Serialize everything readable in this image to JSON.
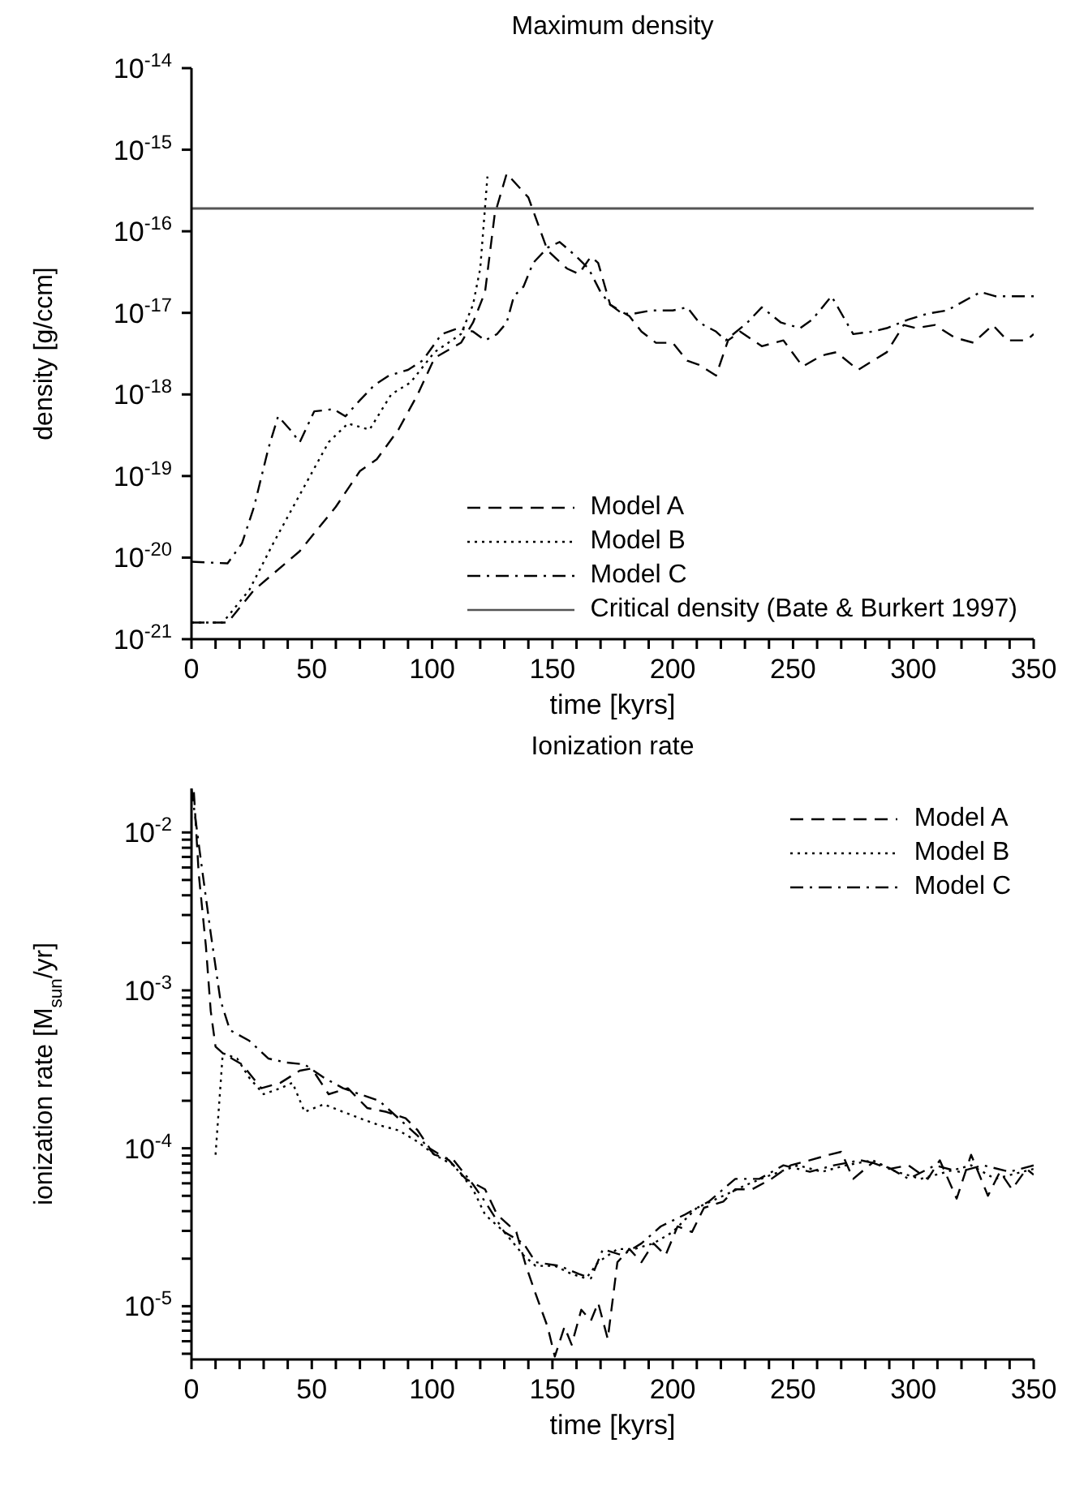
{
  "chart_data": [
    {
      "type": "line",
      "title": "Maximum density",
      "xlabel": "time [kyrs]",
      "ylabel": "density [g/ccm]",
      "log": "y",
      "legend": "bottom right",
      "xlim": [
        0,
        350
      ],
      "xticks": [
        0,
        {
          "value": 10,
          "label": null
        },
        {
          "value": 20,
          "label": null
        },
        {
          "value": 30,
          "label": null
        },
        {
          "value": 40,
          "label": null
        },
        50,
        {
          "value": 60,
          "label": null
        },
        {
          "value": 70,
          "label": null
        },
        {
          "value": 80,
          "label": null
        },
        {
          "value": 90,
          "label": null
        },
        100,
        {
          "value": 110,
          "label": null
        },
        {
          "value": 120,
          "label": null
        },
        {
          "value": 130,
          "label": null
        },
        {
          "value": 140,
          "label": null
        },
        150,
        {
          "value": 160,
          "label": null
        },
        {
          "value": 170,
          "label": null
        },
        {
          "value": 180,
          "label": null
        },
        {
          "value": 190,
          "label": null
        },
        200,
        {
          "value": 210,
          "label": null
        },
        {
          "value": 220,
          "label": null
        },
        {
          "value": 230,
          "label": null
        },
        {
          "value": 240,
          "label": null
        },
        250,
        {
          "value": 260,
          "label": null
        },
        {
          "value": 270,
          "label": null
        },
        {
          "value": 280,
          "label": null
        },
        {
          "value": 290,
          "label": null
        },
        300,
        {
          "value": 310,
          "label": null
        },
        {
          "value": 320,
          "label": null
        },
        {
          "value": 330,
          "label": null
        },
        {
          "value": 340,
          "label": null
        },
        350
      ],
      "ylim": [
        1e-21,
        1e-14
      ],
      "yticks": [
        {
          "value": 1e-21,
          "label": "10$^{-21}$"
        },
        {
          "value": 1e-20,
          "label": "10$^{-20}$"
        },
        {
          "value": 1e-19,
          "label": "10$^{-19}$"
        },
        {
          "value": 1e-18,
          "label": "10$^{-18}$"
        },
        {
          "value": 1e-17,
          "label": "10$^{-17}$"
        },
        {
          "value": 1e-16,
          "label": "10$^{-16}$"
        },
        {
          "value": 1e-15,
          "label": "10$^{-15}$"
        },
        {
          "value": 1e-14,
          "label": "10$^{-14}$"
        }
      ],
      "ref_lines": [
        {
          "axis": "y",
          "value": 1.9e-16,
          "label": "Critical density (Bate & Burkert 1997)",
          "color": "#555555",
          "line_style": "solid"
        }
      ],
      "series": [
        {
          "name": "Model A",
          "color": "#000000",
          "line_style": "dashed",
          "x": [
            0,
            15,
            26,
            45,
            60,
            70,
            77,
            86,
            94,
            101,
            112,
            117,
            122,
            126,
            131,
            140,
            148,
            156,
            161,
            166,
            169,
            174,
            182,
            187,
            193,
            200,
            206,
            211,
            218,
            223,
            228,
            237,
            246,
            254,
            262,
            268,
            277,
            289,
            296,
            301,
            309,
            317,
            325,
            333,
            339,
            347,
            350
          ],
          "values": [
            1.6e-21,
            1.6e-21,
            4e-21,
            1.2e-20,
            4.2e-20,
            1.15e-19,
            1.6e-19,
            3.7e-19,
            1e-18,
            2.8e-18,
            4.3e-18,
            7.6e-18,
            1.8e-17,
            1.6e-16,
            5.1e-16,
            2.6e-16,
            5.8e-17,
            3.5e-17,
            3e-17,
            4.9e-17,
            4.1e-17,
            1.26e-17,
            9.1e-18,
            5.9e-18,
            4.3e-18,
            4.3e-18,
            2.6e-18,
            2.3e-18,
            1.7e-18,
            4.6e-18,
            5.9e-18,
            3.9e-18,
            4.6e-18,
            2.2e-18,
            3e-18,
            3.3e-18,
            2e-18,
            3.3e-18,
            7.1e-18,
            6.5e-18,
            7.1e-18,
            5e-18,
            4.3e-18,
            7.1e-18,
            4.6e-18,
            4.6e-18,
            5.5e-18
          ]
        },
        {
          "name": "Model B",
          "color": "#000000",
          "line_style": "dotted",
          "x": [
            0,
            13,
            24,
            34,
            45,
            57,
            65,
            74,
            83,
            91,
            101,
            112,
            117,
            120,
            123
          ],
          "values": [
            1.6e-21,
            1.6e-21,
            4e-21,
            1.5e-20,
            5.9e-20,
            2.6e-19,
            4.4e-19,
            3.7e-19,
            1e-18,
            1.4e-18,
            3.3e-18,
            5.5e-18,
            1.26e-17,
            3.5e-17,
            4.7e-16
          ]
        },
        {
          "name": "Model C",
          "color": "#000000",
          "line_style": "dashdot",
          "x": [
            0,
            15,
            21,
            26,
            32,
            36,
            41,
            45,
            51,
            59,
            64,
            70,
            76,
            82,
            90,
            96,
            104,
            111,
            117,
            122,
            127,
            131,
            134,
            138,
            142,
            148,
            153,
            160,
            165,
            170,
            174,
            179,
            184,
            191,
            200,
            206,
            211,
            218,
            222,
            231,
            237,
            245,
            253,
            258,
            266,
            275,
            283,
            289,
            298,
            306,
            314,
            323,
            328,
            334,
            350
          ],
          "values": [
            8.9e-21,
            8.5e-21,
            1.5e-20,
            4.2e-20,
            2.2e-19,
            5.4e-19,
            3.7e-19,
            2.6e-19,
            6.2e-19,
            6.6e-19,
            5.4e-19,
            8.5e-19,
            1.3e-18,
            1.7e-18,
            2e-18,
            2.6e-18,
            5.5e-18,
            6.5e-18,
            5.9e-18,
            4.6e-18,
            5.5e-18,
            7.6e-18,
            1.6e-17,
            2.1e-17,
            4.1e-17,
            6.3e-17,
            7.4e-17,
            4.9e-17,
            3.5e-17,
            1.8e-17,
            1.26e-17,
            9.8e-18,
            9.8e-18,
            1.07e-17,
            1.07e-17,
            1.17e-17,
            7.6e-18,
            5.9e-18,
            4.6e-18,
            7.6e-18,
            1.17e-17,
            7.6e-18,
            6.5e-18,
            8.3e-18,
            1.6e-17,
            5.5e-18,
            5.9e-18,
            6.5e-18,
            8.3e-18,
            9.8e-18,
            1.07e-17,
            1.5e-17,
            1.8e-17,
            1.6e-17,
            1.6e-17
          ]
        }
      ]
    },
    {
      "type": "line",
      "title": "Ionization rate",
      "xlabel": "time [kyrs]",
      "ylabel": "ionization rate [M$_{sun}$/yr]",
      "log": "y",
      "legend": "top right",
      "xlim": [
        0,
        350
      ],
      "xticks": [
        0,
        {
          "value": 10,
          "label": null
        },
        {
          "value": 20,
          "label": null
        },
        {
          "value": 30,
          "label": null
        },
        {
          "value": 40,
          "label": null
        },
        50,
        {
          "value": 60,
          "label": null
        },
        {
          "value": 70,
          "label": null
        },
        {
          "value": 80,
          "label": null
        },
        {
          "value": 90,
          "label": null
        },
        100,
        {
          "value": 110,
          "label": null
        },
        {
          "value": 120,
          "label": null
        },
        {
          "value": 130,
          "label": null
        },
        {
          "value": 140,
          "label": null
        },
        150,
        {
          "value": 160,
          "label": null
        },
        {
          "value": 170,
          "label": null
        },
        {
          "value": 180,
          "label": null
        },
        {
          "value": 190,
          "label": null
        },
        200,
        {
          "value": 210,
          "label": null
        },
        {
          "value": 220,
          "label": null
        },
        {
          "value": 230,
          "label": null
        },
        {
          "value": 240,
          "label": null
        },
        250,
        {
          "value": 260,
          "label": null
        },
        {
          "value": 270,
          "label": null
        },
        {
          "value": 280,
          "label": null
        },
        {
          "value": 290,
          "label": null
        },
        300,
        {
          "value": 310,
          "label": null
        },
        {
          "value": 320,
          "label": null
        },
        {
          "value": 330,
          "label": null
        },
        {
          "value": 340,
          "label": null
        },
        350
      ],
      "ylim": [
        4.6e-06,
        0.019
      ],
      "yticks": [
        {
          "value": 5e-06,
          "label": null
        },
        {
          "value": 6e-06,
          "label": null
        },
        {
          "value": 7e-06,
          "label": null
        },
        {
          "value": 8e-06,
          "label": null
        },
        {
          "value": 9e-06,
          "label": null
        },
        {
          "value": 1e-05,
          "label": "10$^{-5}$"
        },
        {
          "value": 2e-05,
          "label": null
        },
        {
          "value": 3e-05,
          "label": null
        },
        {
          "value": 4e-05,
          "label": null
        },
        {
          "value": 5e-05,
          "label": null
        },
        {
          "value": 6e-05,
          "label": null
        },
        {
          "value": 7e-05,
          "label": null
        },
        {
          "value": 8e-05,
          "label": null
        },
        {
          "value": 9e-05,
          "label": null
        },
        {
          "value": 0.0001,
          "label": "10$^{-4}$"
        },
        {
          "value": 0.0002,
          "label": null
        },
        {
          "value": 0.0003,
          "label": null
        },
        {
          "value": 0.0004,
          "label": null
        },
        {
          "value": 0.0005,
          "label": null
        },
        {
          "value": 0.0006,
          "label": null
        },
        {
          "value": 0.0007,
          "label": null
        },
        {
          "value": 0.0008,
          "label": null
        },
        {
          "value": 0.0009,
          "label": null
        },
        {
          "value": 0.001,
          "label": "10$^{-3}$"
        },
        {
          "value": 0.002,
          "label": null
        },
        {
          "value": 0.003,
          "label": null
        },
        {
          "value": 0.004,
          "label": null
        },
        {
          "value": 0.005,
          "label": null
        },
        {
          "value": 0.006,
          "label": null
        },
        {
          "value": 0.007,
          "label": null
        },
        {
          "value": 0.008,
          "label": null
        },
        {
          "value": 0.009,
          "label": null
        },
        {
          "value": 0.01,
          "label": "10$^{-2}$"
        }
      ],
      "series": [
        {
          "name": "Model A",
          "color": "#000000",
          "line_style": "dashed",
          "x": [
            1,
            3,
            6,
            8,
            10,
            13,
            21,
            29,
            37,
            45,
            50,
            57,
            65,
            73,
            81,
            89,
            94,
            99,
            107,
            114,
            122,
            127,
            135,
            139,
            143,
            148,
            151,
            155,
            158,
            162,
            166,
            169,
            173,
            177,
            182,
            187,
            192,
            197,
            202,
            208,
            213,
            221,
            226,
            233,
            241,
            249,
            257,
            265,
            270,
            275,
            283,
            290,
            298,
            306,
            311,
            318,
            324,
            331,
            336,
            341,
            347,
            350
          ],
          "values": [
            0.018,
            0.0055,
            0.0019,
            0.00074,
            0.00044,
            0.0004,
            0.00034,
            0.00024,
            0.00026,
            0.00031,
            0.00032,
            0.00022,
            0.00024,
            0.00018,
            0.00017,
            0.000155,
            0.00013,
            0.0001,
            8.4e-05,
            6.4e-05,
            5.5e-05,
            3.8e-05,
            2.95e-05,
            1.8e-05,
            1.2e-05,
            7.4e-06,
            4.8e-06,
            7.4e-06,
            5.7e-06,
            9.5e-06,
            8.1e-06,
            1.05e-05,
            6.2e-06,
            1.9e-05,
            2.3e-05,
            1.9e-05,
            2.5e-05,
            2.1e-05,
            3.2e-05,
            2.95e-05,
            4.2e-05,
            4.6e-05,
            5.5e-05,
            5.5e-05,
            6.4e-05,
            7.8e-05,
            8.4e-05,
            9.1e-05,
            9.5e-05,
            6.4e-05,
            8.1e-05,
            7.4e-05,
            7.8e-05,
            6.4e-05,
            8.4e-05,
            4.8e-05,
            9.1e-05,
            5e-05,
            7.1e-05,
            5.5e-05,
            7.4e-05,
            6.8e-05
          ]
        },
        {
          "name": "Model B",
          "color": "#000000",
          "line_style": "dotted",
          "x": [
            10,
            13,
            19,
            24,
            30,
            37,
            42,
            47,
            55,
            63,
            70,
            78,
            86,
            94,
            101,
            109,
            117,
            122,
            130,
            138,
            143,
            151,
            158,
            164,
            169,
            177,
            184,
            192,
            200,
            210,
            221,
            231,
            241,
            252,
            262,
            272,
            283,
            293,
            303,
            314,
            324,
            334,
            350
          ],
          "values": [
            9.1e-05,
            0.0004,
            0.00037,
            0.00028,
            0.00022,
            0.00024,
            0.00026,
            0.00017,
            0.00019,
            0.00017,
            0.000155,
            0.00014,
            0.00013,
            0.00011,
            9.1e-05,
            7.8e-05,
            5.5e-05,
            3.8e-05,
            2.95e-05,
            2.1e-05,
            1.8e-05,
            1.8e-05,
            1.6e-05,
            1.5e-05,
            1.9e-05,
            2.3e-05,
            2.3e-05,
            2.5e-05,
            2.95e-05,
            4.2e-05,
            5e-05,
            5.9e-05,
            6.8e-05,
            7.8e-05,
            7.1e-05,
            7.8e-05,
            8.4e-05,
            7.1e-05,
            6.4e-05,
            7.1e-05,
            7.8e-05,
            6.4e-05,
            7.4e-05
          ]
        },
        {
          "name": "Model C",
          "color": "#000000",
          "line_style": "dashdot",
          "x": [
            0,
            4,
            8,
            12,
            16,
            24,
            32,
            39,
            47,
            55,
            63,
            70,
            78,
            86,
            94,
            101,
            109,
            117,
            122,
            130,
            138,
            143,
            153,
            161,
            166,
            171,
            179,
            187,
            195,
            205,
            215,
            226,
            236,
            246,
            257,
            267,
            278,
            288,
            298,
            309,
            319,
            329,
            340,
            350
          ],
          "values": [
            0.019,
            0.0065,
            0.0023,
            0.00087,
            0.00056,
            0.00048,
            0.00037,
            0.00035,
            0.00034,
            0.00028,
            0.00024,
            0.00022,
            0.0002,
            0.000155,
            0.00012,
            9.1e-05,
            8.4e-05,
            5.9e-05,
            4.6e-05,
            2.95e-05,
            2.5e-05,
            1.9e-05,
            1.8e-05,
            1.6e-05,
            1.5e-05,
            2.3e-05,
            2.1e-05,
            2.5e-05,
            3.2e-05,
            3.8e-05,
            4.6e-05,
            6.4e-05,
            6.4e-05,
            7.8e-05,
            7.1e-05,
            7.8e-05,
            8.4e-05,
            7.8e-05,
            6.4e-05,
            7.8e-05,
            7.1e-05,
            7.8e-05,
            7.1e-05,
            7.8e-05
          ]
        }
      ]
    }
  ]
}
